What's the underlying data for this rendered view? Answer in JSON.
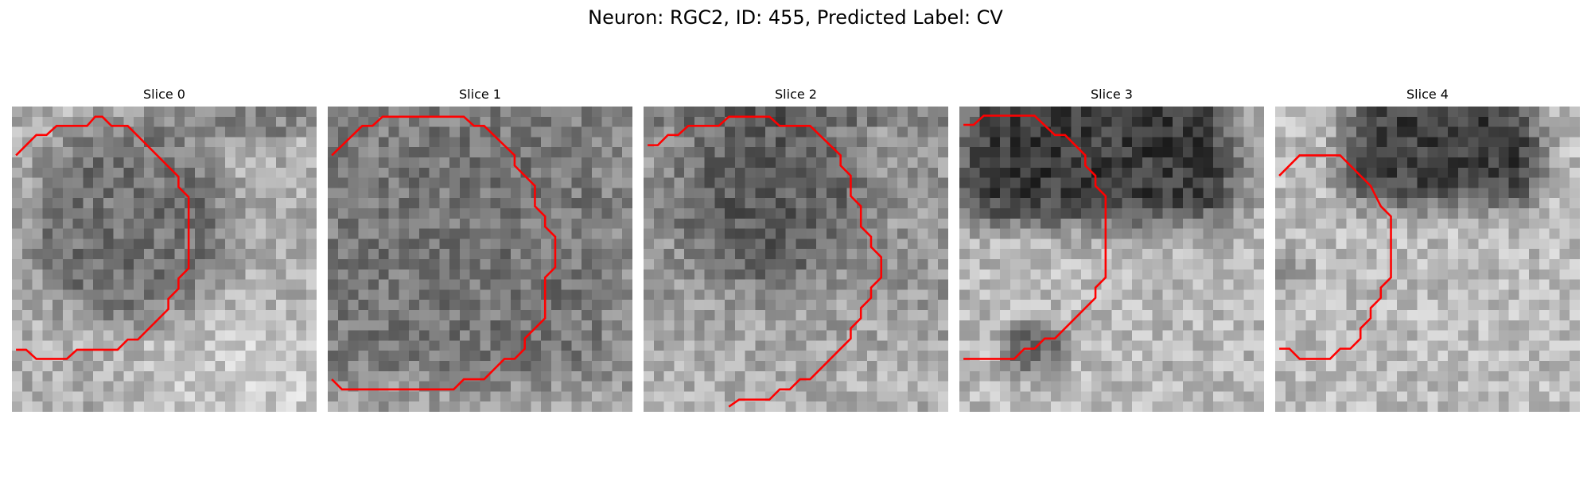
{
  "figure": {
    "title": "Neuron: RGC2, ID: 455, Predicted Label: CV",
    "contour_color": "#ff0000"
  },
  "panels": [
    {
      "title": "Slice 0"
    },
    {
      "title": "Slice 1"
    },
    {
      "title": "Slice 2"
    },
    {
      "title": "Slice 3"
    },
    {
      "title": "Slice 4"
    }
  ]
}
